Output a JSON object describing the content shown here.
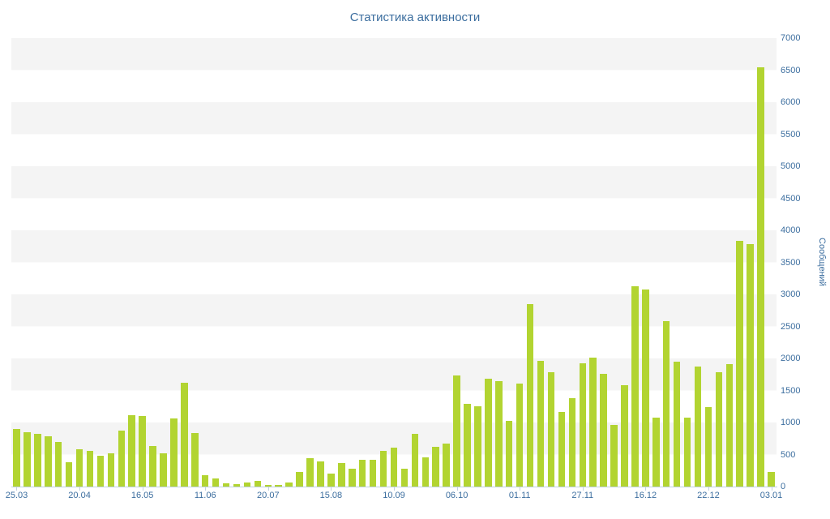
{
  "chart_data": {
    "type": "bar",
    "title": "Статистика активности",
    "ylabel": "Сообщений",
    "xlabel": "",
    "ylim": [
      0,
      7000
    ],
    "ytick_step": 500,
    "yticks": [
      0,
      500,
      1000,
      1500,
      2000,
      2500,
      3000,
      3500,
      4000,
      4500,
      5000,
      5500,
      6000,
      6500,
      7000
    ],
    "grid": "alternating horizontal bands every 500 units",
    "legend": "none",
    "values": [
      900,
      850,
      820,
      790,
      700,
      380,
      580,
      560,
      480,
      520,
      870,
      1110,
      1100,
      630,
      520,
      1060,
      1620,
      830,
      180,
      130,
      50,
      40,
      60,
      90,
      30,
      30,
      60,
      230,
      440,
      390,
      200,
      370,
      280,
      420,
      420,
      560,
      610,
      280,
      820,
      450,
      620,
      670,
      1730,
      1290,
      1250,
      1680,
      1640,
      1020,
      1610,
      2850,
      1960,
      1790,
      1170,
      1380,
      1930,
      2010,
      1760,
      960,
      1580,
      3130,
      3080,
      1070,
      2580,
      1950,
      1070,
      1870,
      1240,
      1780,
      1910,
      3840,
      3780,
      6540,
      230
    ],
    "xticks": [
      {
        "label": "25.03",
        "bar": 0
      },
      {
        "label": "20.04",
        "bar": 6
      },
      {
        "label": "16.05",
        "bar": 12
      },
      {
        "label": "11.06",
        "bar": 18
      },
      {
        "label": "20.07",
        "bar": 24
      },
      {
        "label": "15.08",
        "bar": 30
      },
      {
        "label": "10.09",
        "bar": 36
      },
      {
        "label": "06.10",
        "bar": 42
      },
      {
        "label": "01.11",
        "bar": 48
      },
      {
        "label": "27.11",
        "bar": 54
      },
      {
        "label": "16.12",
        "bar": 60
      },
      {
        "label": "22.12",
        "bar": 66
      },
      {
        "label": "03.01",
        "bar": 72
      }
    ],
    "colors": {
      "bar": "#b2d431",
      "label": "#3c6e9f",
      "stripe": "#f4f4f4",
      "axis": "#c0d0e0"
    }
  }
}
